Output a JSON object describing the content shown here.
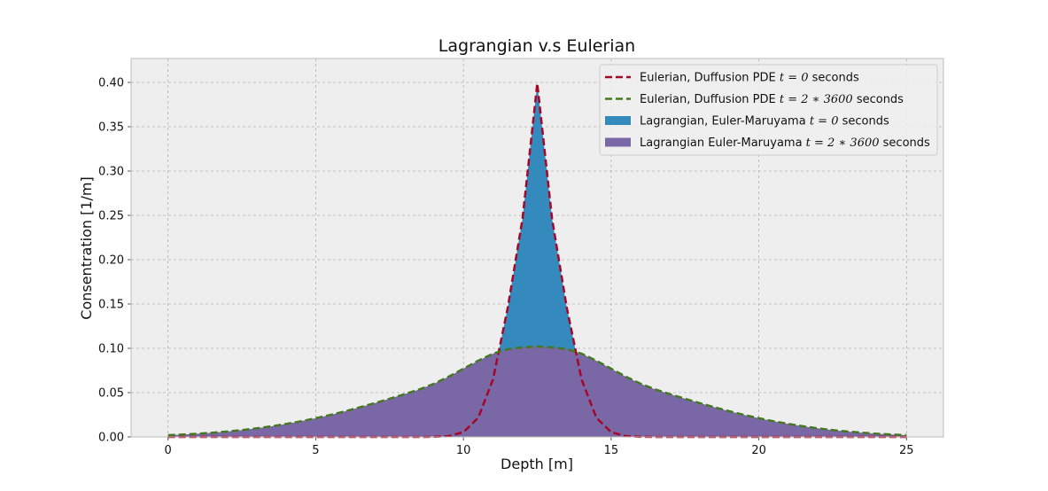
{
  "chart_data": {
    "type": "area",
    "title": "Lagrangian v.s Eulerian",
    "xlabel": "Depth [m]",
    "ylabel": "Consentration [1/m]",
    "xlim": [
      -1.25,
      26.25
    ],
    "ylim": [
      0,
      0.427
    ],
    "xticks": [
      0,
      5,
      10,
      15,
      20,
      25
    ],
    "xtick_labels": [
      "0",
      "5",
      "10",
      "15",
      "20",
      "25"
    ],
    "yticks": [
      0,
      0.05,
      0.1,
      0.15,
      0.2,
      0.25,
      0.3,
      0.35,
      0.4
    ],
    "ytick_labels": [
      "0.00",
      "0.05",
      "0.10",
      "0.15",
      "0.20",
      "0.25",
      "0.30",
      "0.35",
      "0.40"
    ],
    "grid": true,
    "legend_position": "top-right",
    "x": [
      0,
      0.5,
      1,
      1.5,
      2,
      2.5,
      3,
      3.5,
      4,
      4.5,
      5,
      5.5,
      6,
      6.5,
      7,
      7.5,
      8,
      8.5,
      9,
      9.5,
      10,
      10.5,
      11,
      11.5,
      12,
      12.5,
      13,
      13.5,
      14,
      14.5,
      15,
      15.5,
      16,
      16.5,
      17,
      17.5,
      18,
      18.5,
      19,
      19.5,
      20,
      20.5,
      21,
      21.5,
      22,
      22.5,
      23,
      23.5,
      24,
      24.5,
      25
    ],
    "series": [
      {
        "name": "Eulerian, Duffusion PDE $t=0$ seconds",
        "legend_text": "Eulerian, Duffusion PDE ",
        "legend_math": "t = 0",
        "legend_suffix": " seconds",
        "kind": "dashed-line",
        "color": "#A60628",
        "values": [
          0,
          0,
          0,
          0,
          0,
          0,
          0,
          0,
          0,
          0,
          0,
          0,
          0,
          0,
          0,
          0,
          0,
          0,
          0.0001,
          0.0009,
          0.0054,
          0.0216,
          0.0648,
          0.1457,
          0.2462,
          0.3989,
          0.2462,
          0.1457,
          0.0648,
          0.0216,
          0.0054,
          0.0009,
          0.0001,
          0,
          0,
          0,
          0,
          0,
          0,
          0,
          0,
          0,
          0,
          0,
          0,
          0,
          0,
          0,
          0,
          0,
          0
        ]
      },
      {
        "name": "Eulerian, Duffusion PDE $t=2*3600$ seconds",
        "legend_text": "Eulerian, Duffusion PDE ",
        "legend_math": "t = 2 ∗ 3600",
        "legend_suffix": " seconds",
        "kind": "dashed-line",
        "color": "#467821",
        "values": [
          0.002,
          0.0027,
          0.0036,
          0.0048,
          0.0061,
          0.0077,
          0.0097,
          0.012,
          0.0147,
          0.0177,
          0.0211,
          0.0249,
          0.029,
          0.0335,
          0.0382,
          0.0431,
          0.0482,
          0.0535,
          0.06,
          0.068,
          0.077,
          0.086,
          0.094,
          0.099,
          0.101,
          0.102,
          0.101,
          0.099,
          0.094,
          0.086,
          0.077,
          0.068,
          0.06,
          0.0535,
          0.0482,
          0.0431,
          0.0382,
          0.0335,
          0.029,
          0.0249,
          0.0211,
          0.0177,
          0.0147,
          0.012,
          0.0097,
          0.0077,
          0.0061,
          0.0048,
          0.0036,
          0.0027,
          0.002
        ]
      },
      {
        "name": "Lagrangian, Euler-Maruyama $t=0$ seconds",
        "legend_text": "Lagrangian, Euler-Maruyama ",
        "legend_math": "t = 0",
        "legend_suffix": " seconds",
        "kind": "filled",
        "color": "#348ABD",
        "values": [
          0,
          0,
          0,
          0,
          0,
          0,
          0,
          0,
          0,
          0,
          0,
          0,
          0,
          0,
          0,
          0,
          0,
          0,
          0.0001,
          0.0009,
          0.0054,
          0.0216,
          0.0648,
          0.1457,
          0.2462,
          0.3989,
          0.2462,
          0.1457,
          0.0648,
          0.0216,
          0.0054,
          0.0009,
          0.0001,
          0,
          0,
          0,
          0,
          0,
          0,
          0,
          0,
          0,
          0,
          0,
          0,
          0,
          0,
          0,
          0,
          0,
          0
        ]
      },
      {
        "name": "Lagrangian Euler-Maruyama $t=2*3600$ seconds",
        "legend_text": "Lagrangian Euler-Maruyama ",
        "legend_math": "t = 2 ∗ 3600",
        "legend_suffix": " seconds",
        "kind": "filled",
        "color": "#7A68A6",
        "values": [
          0.002,
          0.0027,
          0.0036,
          0.0048,
          0.0061,
          0.0077,
          0.0097,
          0.012,
          0.0147,
          0.0177,
          0.0211,
          0.0249,
          0.029,
          0.0335,
          0.0382,
          0.0431,
          0.0482,
          0.0535,
          0.06,
          0.068,
          0.077,
          0.086,
          0.094,
          0.099,
          0.101,
          0.102,
          0.101,
          0.099,
          0.094,
          0.086,
          0.077,
          0.068,
          0.06,
          0.0535,
          0.0482,
          0.0431,
          0.0382,
          0.0335,
          0.029,
          0.0249,
          0.0211,
          0.0177,
          0.0147,
          0.012,
          0.0097,
          0.0077,
          0.0061,
          0.0048,
          0.0036,
          0.0027,
          0.002
        ]
      }
    ],
    "colors": {
      "axes_background": "#EEEEEE",
      "grid": "#B2B2B2",
      "spine": "#BCBCBC"
    }
  }
}
